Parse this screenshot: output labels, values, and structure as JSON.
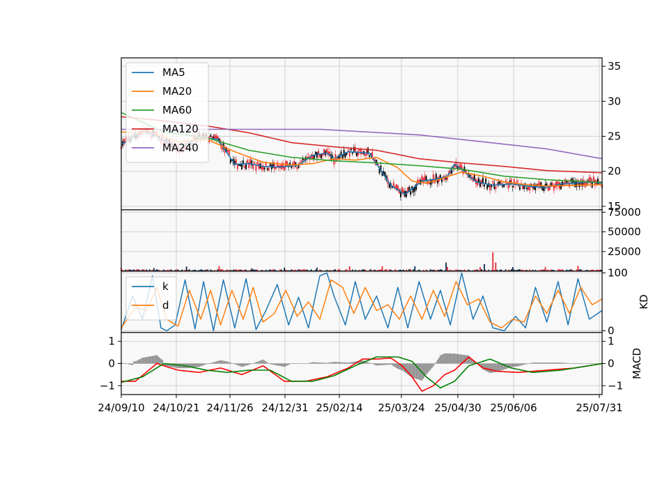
{
  "chart_data": [
    {
      "panel": "price",
      "type": "line",
      "grid": true,
      "legend_position": "top-left",
      "ylim": [
        14.5,
        36.2
      ],
      "y_ticks": [
        "15",
        "20",
        "25",
        "30",
        "35"
      ],
      "x_ticks": [
        "24/09/10",
        "24/10/21",
        "24/11/26",
        "24/12/31",
        "25/02/14",
        "25/03/24",
        "25/04/30",
        "25/06/06",
        "25/07/31"
      ],
      "series": [
        {
          "name": "MA5",
          "color": "#1f77b4",
          "x": [
            0,
            15,
            25,
            40,
            55,
            68,
            80,
            90,
            100,
            112,
            125,
            135,
            145,
            150,
            160,
            175,
            190,
            200,
            212,
            222,
            230,
            235,
            240,
            250,
            262,
            275,
            290,
            300,
            310,
            320,
            330,
            339
          ],
          "values": [
            23.8,
            25.8,
            25.0,
            23.2,
            24.8,
            24.6,
            21.0,
            21.1,
            20.7,
            20.6,
            20.9,
            22.3,
            22.6,
            21.8,
            22.8,
            22.6,
            18.0,
            16.7,
            18.6,
            18.9,
            19.3,
            21.0,
            20.3,
            18.5,
            18.0,
            18.2,
            17.8,
            17.7,
            18.2,
            18.3,
            18.5,
            18.3
          ]
        },
        {
          "name": "MA20",
          "color": "#ff7f0e",
          "x": [
            0,
            20,
            40,
            60,
            80,
            100,
            120,
            135,
            150,
            165,
            180,
            195,
            205,
            215,
            225,
            240,
            255,
            270,
            285,
            300,
            320,
            339
          ],
          "values": [
            25.6,
            25.6,
            24.2,
            24.6,
            22.8,
            21.3,
            20.9,
            21.1,
            21.8,
            21.6,
            22.0,
            20.5,
            18.6,
            18.3,
            18.9,
            19.9,
            19.3,
            18.5,
            18.1,
            17.9,
            18.0,
            18.1
          ]
        },
        {
          "name": "MA60",
          "color": "#2ca02c",
          "x": [
            0,
            30,
            60,
            90,
            120,
            150,
            180,
            210,
            240,
            270,
            300,
            339
          ],
          "values": [
            28.4,
            25.6,
            24.8,
            23.0,
            22.0,
            21.5,
            21.2,
            20.8,
            20.3,
            19.3,
            18.8,
            18.4
          ]
        },
        {
          "name": "MA120",
          "color": "#d62728",
          "x": [
            0,
            30,
            60,
            90,
            120,
            150,
            180,
            210,
            240,
            270,
            300,
            339
          ],
          "values": [
            27.8,
            27.2,
            26.5,
            25.5,
            24.1,
            23.5,
            23.0,
            21.8,
            21.2,
            20.7,
            20.1,
            19.8
          ]
        },
        {
          "name": "MA240",
          "color": "#9467bd",
          "x": [
            0,
            80,
            140,
            210,
            260,
            300,
            339
          ],
          "values": [
            26.0,
            26.0,
            26.0,
            25.2,
            24.1,
            23.2,
            21.8
          ]
        }
      ]
    },
    {
      "panel": "volume",
      "type": "bar",
      "grid": true,
      "ylim": [
        0,
        78000
      ],
      "y_ticks": [
        "25000",
        "50000",
        "75000"
      ]
    },
    {
      "panel": "kd",
      "type": "line",
      "grid": true,
      "legend_position": "top-left",
      "ylim": [
        -3,
        103
      ],
      "y_ticks": [
        "0",
        "100"
      ],
      "ylabel": "KD",
      "series": [
        {
          "name": "k",
          "color": "#1f77b4",
          "x": [
            0,
            8,
            15,
            22,
            28,
            32,
            38,
            45,
            52,
            58,
            65,
            72,
            80,
            88,
            95,
            102,
            110,
            118,
            125,
            132,
            140,
            145,
            150,
            158,
            165,
            172,
            180,
            188,
            195,
            202,
            210,
            218,
            225,
            232,
            240,
            248,
            255,
            262,
            270,
            278,
            285,
            292,
            300,
            308,
            315,
            322,
            330,
            339
          ],
          "values": [
            2,
            60,
            20,
            95,
            5,
            0,
            10,
            88,
            3,
            85,
            0,
            88,
            5,
            90,
            2,
            35,
            80,
            10,
            58,
            5,
            95,
            100,
            60,
            10,
            85,
            20,
            60,
            5,
            75,
            5,
            85,
            20,
            70,
            10,
            100,
            20,
            60,
            5,
            0,
            25,
            5,
            75,
            15,
            85,
            10,
            90,
            20,
            35
          ]
        },
        {
          "name": "d",
          "color": "#ff7f0e",
          "x": [
            0,
            10,
            18,
            25,
            32,
            40,
            48,
            56,
            63,
            70,
            78,
            86,
            93,
            100,
            108,
            116,
            124,
            132,
            140,
            148,
            156,
            164,
            172,
            180,
            188,
            196,
            204,
            212,
            220,
            228,
            236,
            244,
            252,
            260,
            268,
            276,
            284,
            292,
            300,
            308,
            316,
            324,
            332,
            339
          ],
          "values": [
            5,
            40,
            35,
            75,
            20,
            8,
            70,
            20,
            70,
            10,
            70,
            20,
            75,
            15,
            30,
            70,
            25,
            50,
            20,
            88,
            75,
            30,
            75,
            35,
            45,
            20,
            60,
            20,
            70,
            25,
            85,
            45,
            55,
            15,
            5,
            20,
            15,
            60,
            30,
            70,
            30,
            75,
            45,
            55
          ]
        }
      ]
    },
    {
      "panel": "macd",
      "type": "line",
      "grid": true,
      "ylim": [
        -1.4,
        1.4
      ],
      "y_ticks": [
        "−1",
        "0",
        "1"
      ],
      "ylabel": "MACD",
      "series": [
        {
          "name": "",
          "color": "#ff0000",
          "x": [
            0,
            10,
            25,
            40,
            55,
            70,
            85,
            100,
            115,
            130,
            145,
            160,
            170,
            180,
            190,
            198,
            205,
            212,
            220,
            228,
            235,
            245,
            255,
            265,
            280,
            300,
            320,
            339
          ],
          "values": [
            -0.8,
            -0.8,
            0.0,
            -0.3,
            -0.4,
            -0.2,
            -0.5,
            -0.1,
            -0.8,
            -0.8,
            -0.6,
            -0.2,
            0.2,
            0.2,
            0.25,
            -0.1,
            -0.6,
            -1.25,
            -1.0,
            -0.5,
            -0.3,
            0.3,
            -0.2,
            -0.35,
            -0.4,
            -0.3,
            -0.2,
            0.0
          ]
        },
        {
          "name": "",
          "color": "#008000",
          "x": [
            0,
            15,
            30,
            45,
            60,
            75,
            90,
            105,
            120,
            135,
            150,
            165,
            180,
            195,
            205,
            215,
            225,
            235,
            245,
            260,
            275,
            290,
            310,
            339
          ],
          "values": [
            -0.85,
            -0.6,
            0.0,
            -0.1,
            -0.3,
            -0.4,
            -0.3,
            -0.3,
            -0.8,
            -0.8,
            -0.55,
            -0.1,
            0.3,
            0.3,
            0.1,
            -0.6,
            -1.1,
            -0.8,
            -0.1,
            0.2,
            -0.2,
            -0.4,
            -0.3,
            0.0
          ]
        }
      ]
    }
  ]
}
